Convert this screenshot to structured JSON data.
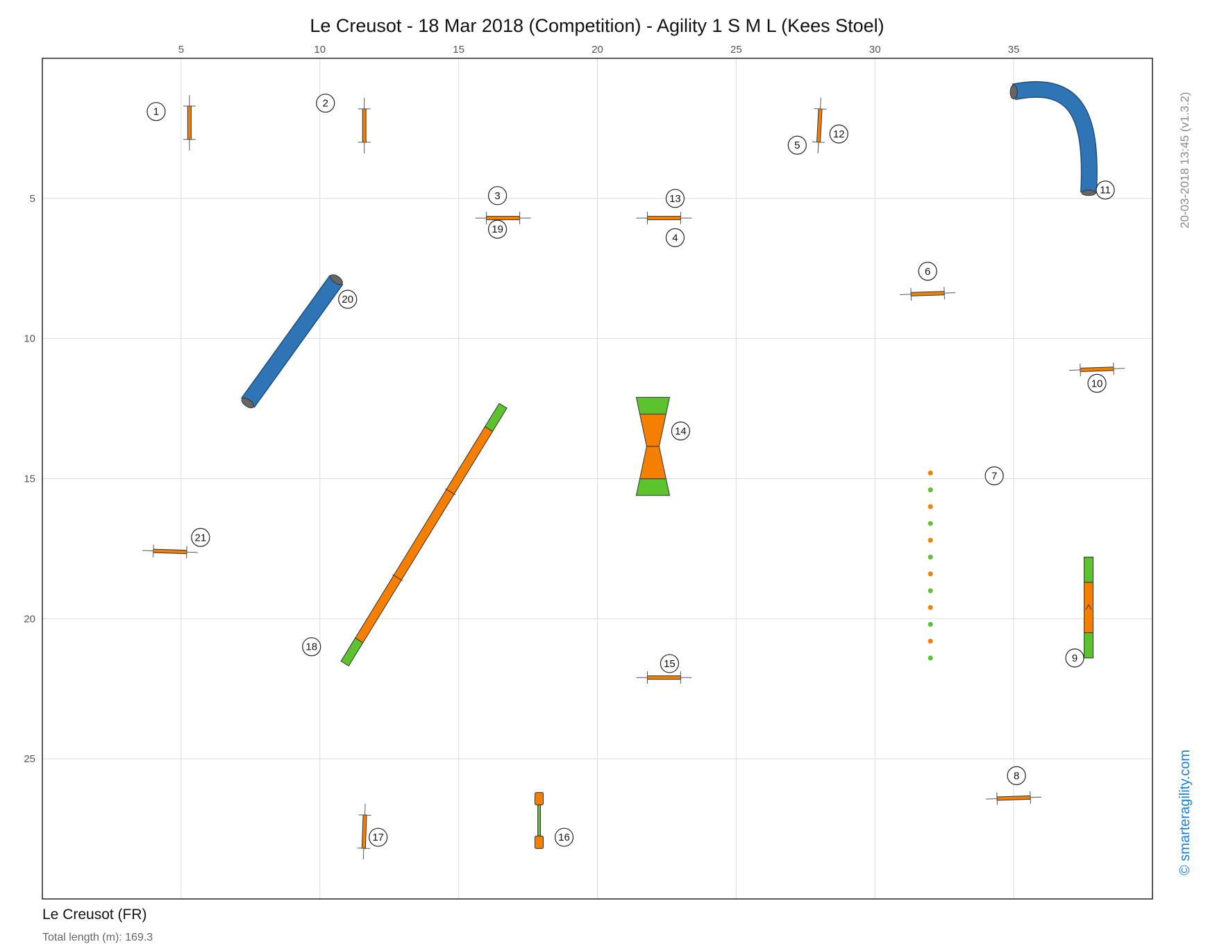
{
  "title": "Le Creusot - 18 Mar 2018 (Competition) - Agility 1 S M L (Kees Stoel)",
  "venue": "Le Creusot (FR)",
  "total_length_label": "Total length (m): 169.3",
  "version_label": "20-03-2018 13:45  (v1.3.2)",
  "brand_label": "© smarteragility.com",
  "colors": {
    "bar": "#f57f00",
    "contact": "#5cc22e",
    "tunnel": "#2f74b5",
    "tunnel_end": "#666666",
    "grid": "#dddddd",
    "brand": "#1a7fd4"
  },
  "chart_data": {
    "type": "course-map",
    "x_ticks": [
      5,
      10,
      15,
      20,
      25,
      30,
      35
    ],
    "y_ticks": [
      5,
      10,
      15,
      20,
      25
    ],
    "xlim": [
      0,
      40
    ],
    "ylim": [
      0,
      30
    ],
    "obstacles": [
      {
        "id": "jump-1",
        "type": "jump",
        "x": 5.3,
        "y": 2.3,
        "angle": 90
      },
      {
        "id": "jump-2",
        "type": "jump",
        "x": 11.6,
        "y": 2.4,
        "angle": 90
      },
      {
        "id": "jump-3-19",
        "type": "jump",
        "x": 16.6,
        "y": 5.7,
        "angle": 0
      },
      {
        "id": "jump-4-13",
        "type": "jump",
        "x": 22.4,
        "y": 5.7,
        "angle": 0
      },
      {
        "id": "jump-5-12",
        "type": "jump",
        "x": 28.0,
        "y": 2.4,
        "angle": 93
      },
      {
        "id": "jump-6",
        "type": "jump",
        "x": 31.9,
        "y": 8.4,
        "angle": -2
      },
      {
        "id": "weave-7",
        "type": "weave",
        "x": 32.0,
        "y": 14.8,
        "x_end": 32.0,
        "y_end": 21.4,
        "poles": 12
      },
      {
        "id": "jump-8",
        "type": "jump",
        "x": 35.0,
        "y": 26.4,
        "angle": -2
      },
      {
        "id": "seesaw-9",
        "type": "seesaw",
        "x": 37.7,
        "y": 17.8,
        "x_end": 37.7,
        "y_end": 21.4
      },
      {
        "id": "jump-10",
        "type": "jump",
        "x": 38.0,
        "y": 11.1,
        "angle": -2
      },
      {
        "id": "tunnel-11",
        "type": "tunnel",
        "curve": true,
        "x": 35.0,
        "y": 1.2,
        "x_end": 37.7,
        "y_end": 4.8
      },
      {
        "id": "aframe-14",
        "type": "aframe",
        "x": 22.0,
        "y": 12.1,
        "x_end": 22.0,
        "y_end": 15.6
      },
      {
        "id": "jump-15",
        "type": "jump",
        "x": 22.4,
        "y": 22.1,
        "angle": 0
      },
      {
        "id": "tyre-16",
        "type": "tyre",
        "x": 17.9,
        "y": 26.2,
        "x_end": 17.9,
        "y_end": 28.2
      },
      {
        "id": "jump-17",
        "type": "jump",
        "x": 11.6,
        "y": 27.6,
        "angle": 92
      },
      {
        "id": "dogwalk-18",
        "type": "dogwalk",
        "x": 10.9,
        "y": 21.6,
        "x_end": 16.6,
        "y_end": 12.4
      },
      {
        "id": "tunnel-20",
        "type": "tunnel",
        "curve": false,
        "x": 7.4,
        "y": 12.3,
        "x_end": 10.6,
        "y_end": 7.9
      },
      {
        "id": "jump-21",
        "type": "jump",
        "x": 4.6,
        "y": 17.6,
        "angle": 2
      }
    ],
    "numbers": [
      {
        "label": "1",
        "x": 4.1,
        "y": 1.9
      },
      {
        "label": "2",
        "x": 10.2,
        "y": 1.6
      },
      {
        "label": "3",
        "x": 16.4,
        "y": 4.9
      },
      {
        "label": "4",
        "x": 22.8,
        "y": 6.4
      },
      {
        "label": "5",
        "x": 27.2,
        "y": 3.1
      },
      {
        "label": "6",
        "x": 31.9,
        "y": 7.6
      },
      {
        "label": "7",
        "x": 34.3,
        "y": 14.9
      },
      {
        "label": "8",
        "x": 35.1,
        "y": 25.6
      },
      {
        "label": "9",
        "x": 37.2,
        "y": 21.4
      },
      {
        "label": "10",
        "x": 38.0,
        "y": 11.6
      },
      {
        "label": "11",
        "x": 38.3,
        "y": 4.7
      },
      {
        "label": "12",
        "x": 28.7,
        "y": 2.7
      },
      {
        "label": "13",
        "x": 22.8,
        "y": 5.0
      },
      {
        "label": "14",
        "x": 23.0,
        "y": 13.3
      },
      {
        "label": "15",
        "x": 22.6,
        "y": 21.6
      },
      {
        "label": "16",
        "x": 18.8,
        "y": 27.8
      },
      {
        "label": "17",
        "x": 12.1,
        "y": 27.8
      },
      {
        "label": "18",
        "x": 9.7,
        "y": 21.0
      },
      {
        "label": "19",
        "x": 16.4,
        "y": 6.1
      },
      {
        "label": "20",
        "x": 11.0,
        "y": 8.6
      },
      {
        "label": "21",
        "x": 5.7,
        "y": 17.1
      }
    ]
  }
}
